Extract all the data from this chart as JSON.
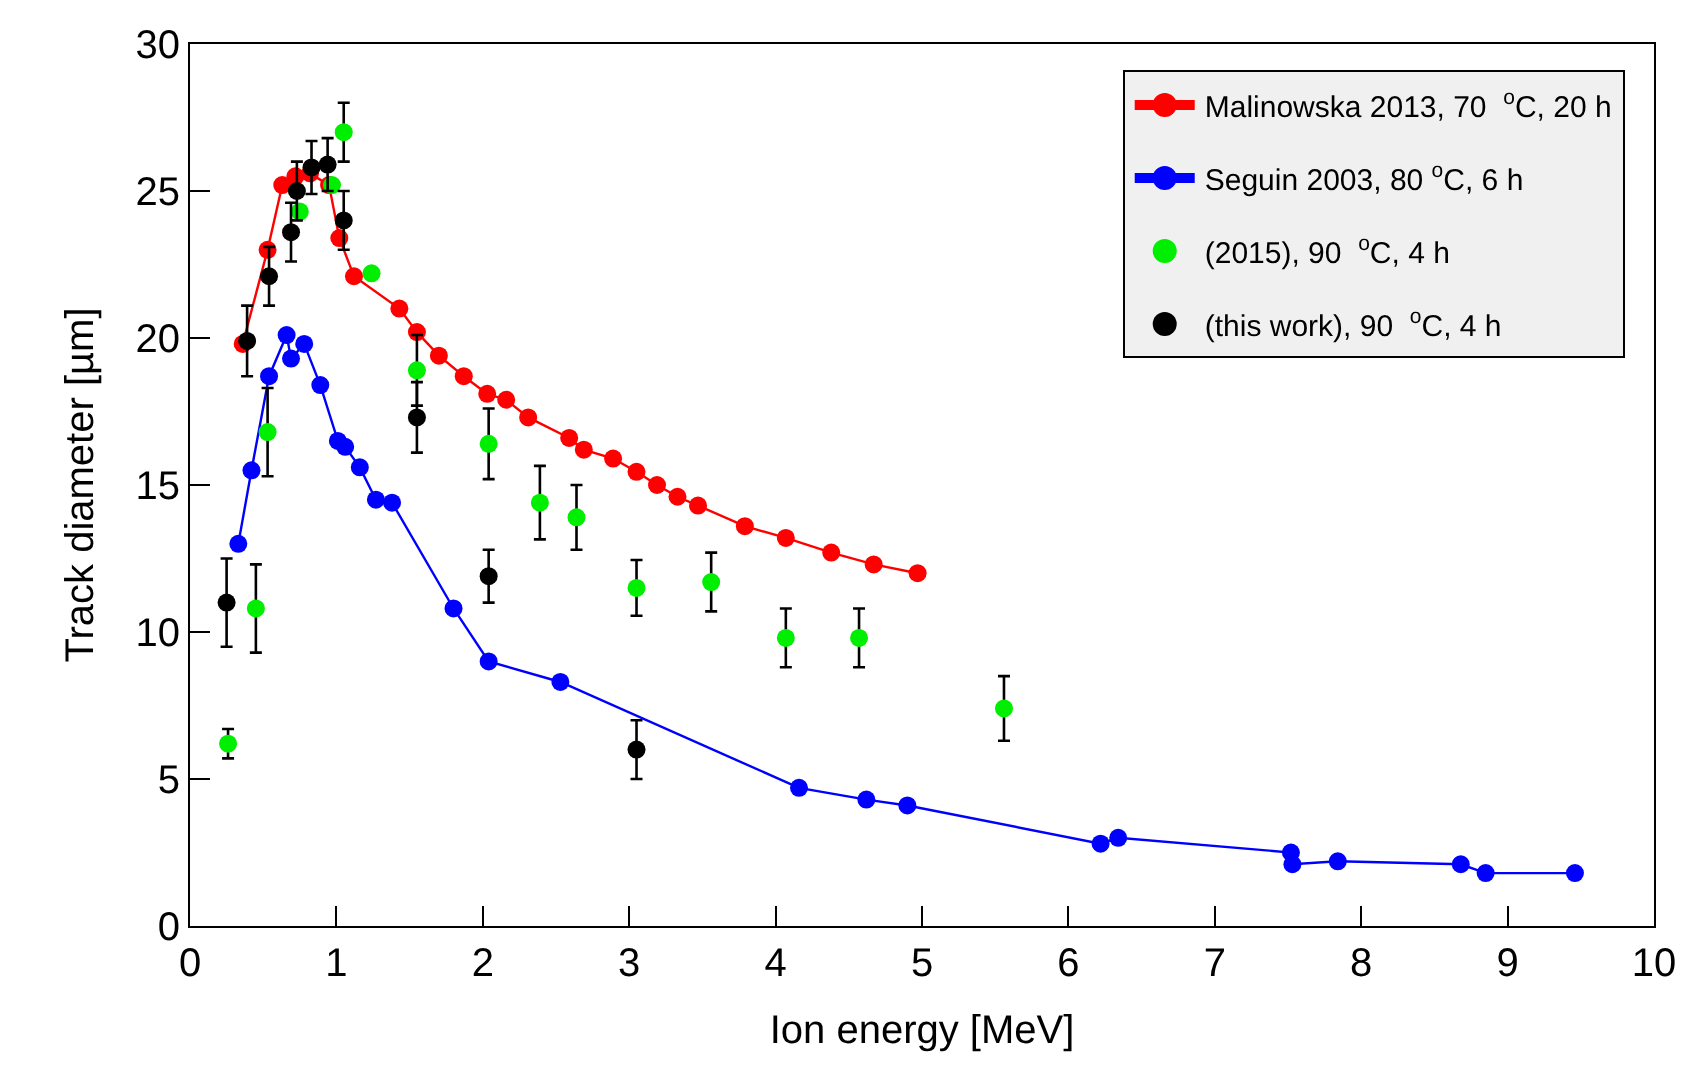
{
  "chart_data": {
    "type": "scatter",
    "xlabel": "Ion energy [MeV]",
    "ylabel": "Track diameter [µm]",
    "xlim": [
      0,
      10
    ],
    "xticks": [
      0,
      1,
      2,
      3,
      4,
      5,
      6,
      7,
      8,
      9,
      10
    ],
    "ylim": [
      0,
      30
    ],
    "yticks": [
      0,
      5,
      10,
      15,
      20,
      25,
      30
    ],
    "grid": false,
    "legend": "top right",
    "marker": "circle",
    "line_style": "solid",
    "series": [
      {
        "name": "Malinowska 2013, 70  $^{o}$C, 20 h",
        "type": "line",
        "color": "#ff0000",
        "x": [
          0.36,
          0.53,
          0.63,
          0.72,
          0.82,
          0.95,
          1.02,
          1.12,
          1.43,
          1.55,
          1.7,
          1.87,
          2.03,
          2.16,
          2.31,
          2.59,
          2.69,
          2.89,
          3.05,
          3.19,
          3.33,
          3.47,
          3.79,
          4.07,
          4.38,
          4.67,
          4.97
        ],
        "values": [
          19.8,
          23.0,
          25.2,
          25.5,
          25.6,
          25.2,
          23.4,
          22.1,
          21.0,
          20.2,
          19.4,
          18.7,
          18.1,
          17.9,
          17.3,
          16.6,
          16.2,
          15.9,
          15.45,
          15.0,
          14.6,
          14.3,
          13.6,
          13.2,
          12.7,
          12.3,
          12.0
        ]
      },
      {
        "name": "Seguin 2003, 80 $^{o}$C, 6 h",
        "type": "line",
        "color": "#0000ff",
        "x": [
          0.33,
          0.42,
          0.54,
          0.66,
          0.69,
          0.78,
          0.89,
          1.01,
          1.06,
          1.16,
          1.27,
          1.38,
          1.8,
          2.04,
          2.53,
          4.16,
          4.62,
          4.9,
          6.22,
          6.34,
          7.52,
          7.53,
          7.84,
          8.68,
          8.85,
          9.46
        ],
        "values": [
          13.0,
          15.5,
          18.7,
          20.1,
          19.3,
          19.8,
          18.4,
          16.5,
          16.3,
          15.6,
          14.5,
          14.4,
          10.8,
          9.0,
          8.3,
          4.7,
          4.3,
          4.1,
          2.8,
          3.0,
          2.5,
          2.1,
          2.2,
          2.1,
          1.8,
          1.8
        ]
      },
      {
        "name": "(2015), 90  $^{o}$C, 4 h",
        "color": "#00ee00",
        "x": [
          0.26,
          0.45,
          0.53,
          0.75,
          0.97,
          1.05,
          1.24,
          1.55,
          2.04,
          2.39,
          2.64,
          3.05,
          3.56,
          4.07,
          4.57,
          5.56
        ],
        "values": [
          6.2,
          10.8,
          16.8,
          24.3,
          25.2,
          27.0,
          22.2,
          18.9,
          16.4,
          14.4,
          13.9,
          11.5,
          11.7,
          9.8,
          9.8,
          7.4
        ],
        "errors": [
          0.5,
          1.5,
          1.5,
          null,
          null,
          1.0,
          null,
          1.2,
          1.2,
          1.25,
          1.1,
          0.95,
          1.0,
          1.0,
          1.0,
          1.1
        ]
      },
      {
        "name": "(this work), 90  $^{o}$C, 4 h",
        "color": "#000000",
        "x": [
          0.25,
          0.39,
          0.54,
          0.69,
          0.73,
          0.83,
          0.94,
          1.05,
          1.55,
          2.04,
          3.05
        ],
        "values": [
          11.0,
          19.9,
          22.1,
          23.6,
          25.0,
          25.8,
          25.9,
          24.0,
          17.3,
          11.9,
          6.0
        ],
        "errors": [
          1.5,
          1.2,
          1.0,
          1.0,
          1.0,
          0.9,
          0.9,
          1.0,
          1.2,
          0.9,
          1.0
        ]
      }
    ]
  }
}
